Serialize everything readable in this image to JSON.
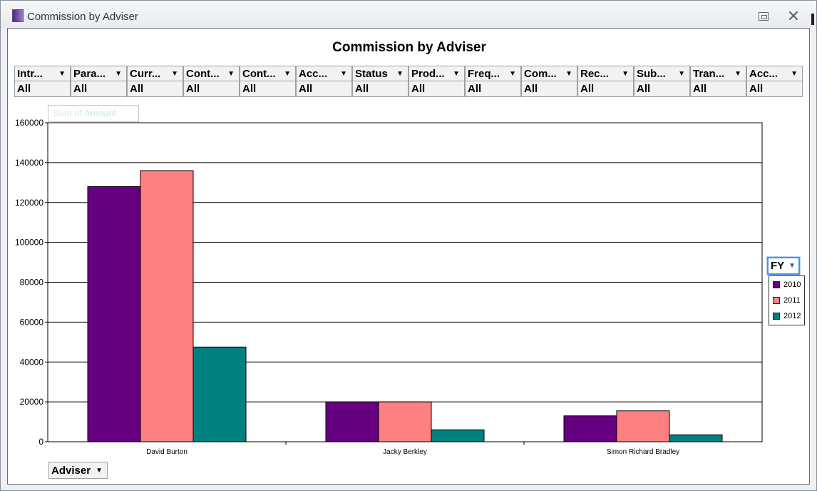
{
  "window": {
    "title": "Commission by Adviser"
  },
  "filters": [
    {
      "label": "Intr...",
      "value": "All"
    },
    {
      "label": "Para...",
      "value": "All"
    },
    {
      "label": "Curr...",
      "value": "All"
    },
    {
      "label": "Cont...",
      "value": "All"
    },
    {
      "label": "Cont...",
      "value": "All"
    },
    {
      "label": "Acc...",
      "value": "All"
    },
    {
      "label": "Status",
      "value": "All"
    },
    {
      "label": "Prod...",
      "value": "All"
    },
    {
      "label": "Freq...",
      "value": "All"
    },
    {
      "label": "Com...",
      "value": "All"
    },
    {
      "label": "Rec...",
      "value": "All"
    },
    {
      "label": "Sub...",
      "value": "All"
    },
    {
      "label": "Tran...",
      "value": "All"
    },
    {
      "label": "Acc...",
      "value": "All"
    }
  ],
  "data_field_label": "Sum of Amount",
  "series_field_label": "FY",
  "category_field_label": "Adviser",
  "colors": {
    "2010": "#660080",
    "2011": "#ff8080",
    "2012": "#008080"
  },
  "chart_data": {
    "type": "bar",
    "title": "Commission by Adviser",
    "categories": [
      "David Burton",
      "Jacky Berkley",
      "Simon Richard Bradley"
    ],
    "series": [
      {
        "name": "2010",
        "values": [
          128000,
          20000,
          13000
        ]
      },
      {
        "name": "2011",
        "values": [
          136000,
          20000,
          15500
        ]
      },
      {
        "name": "2012",
        "values": [
          47500,
          6000,
          3500
        ]
      }
    ],
    "ylim": [
      0,
      160000
    ],
    "yticks": [
      0,
      20000,
      40000,
      60000,
      80000,
      100000,
      120000,
      140000,
      160000
    ],
    "grid": true,
    "legend": "right"
  }
}
